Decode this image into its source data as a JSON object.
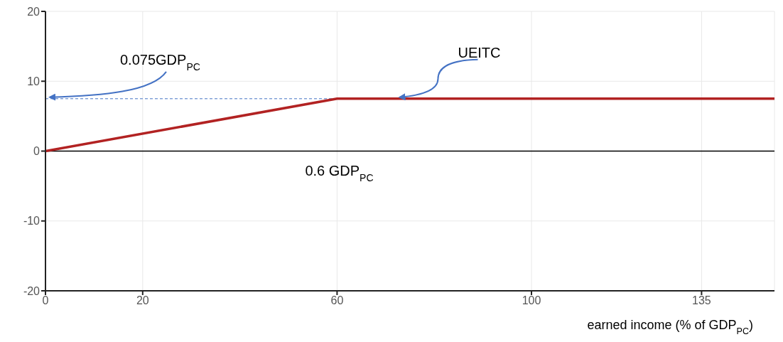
{
  "chart_data": {
    "type": "line",
    "xlabel": "earned income (% of GDP$_{PC}$)",
    "x": [
      0,
      60,
      150
    ],
    "series": [
      {
        "color": "#b22222",
        "values": [
          0,
          7.5,
          7.5
        ]
      }
    ],
    "xlim": [
      0,
      150
    ],
    "xticks": [
      0,
      20,
      60,
      100,
      135
    ],
    "ylim": [
      -20,
      20
    ],
    "yticks": [
      -20,
      -10,
      0,
      10,
      20
    ],
    "grid": true,
    "marker": "none",
    "line_style": "solid",
    "ref_lines": [
      {
        "axis": "y",
        "value": 0,
        "color": "#000000",
        "line_style": "solid"
      },
      {
        "axis": "y",
        "value": 7.5,
        "color": "#4472c4",
        "line_style": "dashed"
      }
    ],
    "annotations": [
      {
        "text": "0.075GDP$_{PC}$",
        "x": 0,
        "y": 7.5
      },
      {
        "text": "UEITC",
        "x": 72,
        "y": 7.5
      },
      {
        "text": "0.6 GDP$_{PC}$",
        "x": 60,
        "y": 0
      }
    ]
  }
}
